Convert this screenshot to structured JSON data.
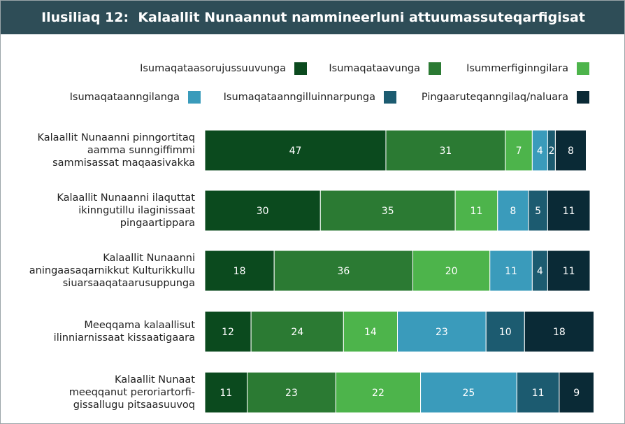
{
  "chart_data": {
    "type": "stacked-bar-horizontal",
    "title": "Ilusiliaq 12:  Kalaallit Nunaannut nammineerluni attuumassuteqarfigisat",
    "categories": [
      "Kalaallit Nunaanni pinngortitaq\naamma sunngiffimmi\nsammisassat maqaasivakka",
      "Kalaallit Nunaanni ilaquttat\nikinngutillu ilaginissaat\npingaartippara",
      "Kalaallit Nunaanni\naningaasaqarnikkut Kulturikkullu\nsiuarsaaqataarusuppunga",
      "Meeqqama kalaallisut\nilinniarnissaat kissaatigaara",
      "Kalaallit Nunaat\nmeeqqanut peroriartorfi-\ngissallugu pitsaasuuvoq"
    ],
    "series": [
      {
        "name": "Isumaqataasorujussuuvunga",
        "color": "#0b4a1e",
        "values": [
          47,
          30,
          18,
          12,
          11
        ]
      },
      {
        "name": "Isumaqataavunga",
        "color": "#2b7a33",
        "values": [
          31,
          35,
          36,
          24,
          23
        ]
      },
      {
        "name": "Isummerfiginngilara",
        "color": "#4db44b",
        "values": [
          7,
          11,
          20,
          14,
          22
        ]
      },
      {
        "name": "Isumaqataanngilanga",
        "color": "#3a9bbb",
        "values": [
          4,
          8,
          11,
          23,
          25
        ]
      },
      {
        "name": "Isumaqataanngilluinnarpunga",
        "color": "#1c5b70",
        "values": [
          2,
          5,
          4,
          10,
          11
        ]
      },
      {
        "name": "Pingaaruteqanngilaq/naluara",
        "color": "#0a2a36",
        "values": [
          8,
          11,
          11,
          18,
          9
        ]
      }
    ],
    "xlim": [
      0,
      100
    ]
  }
}
